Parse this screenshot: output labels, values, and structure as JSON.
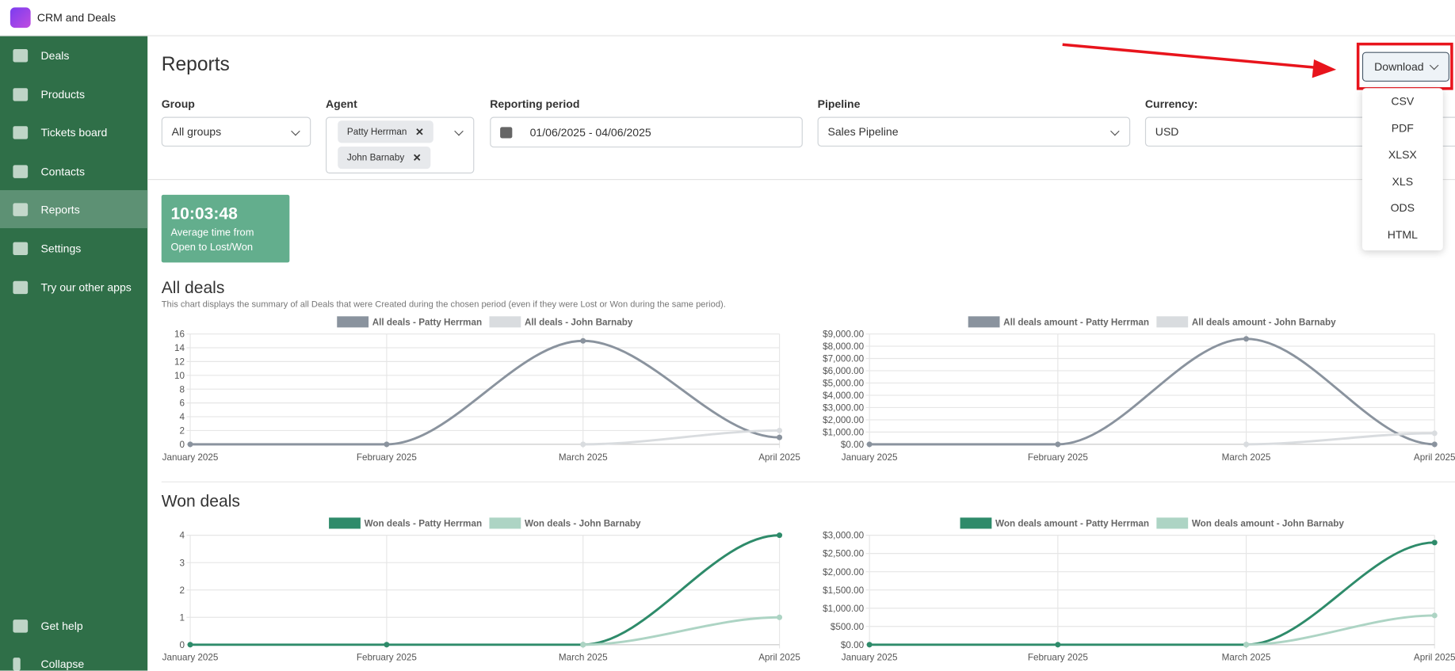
{
  "app": {
    "name": "CRM and Deals"
  },
  "sidebar": {
    "items": [
      "Deals",
      "Products",
      "Tickets board",
      "Contacts",
      "Reports",
      "Settings",
      "Try our other apps"
    ],
    "footer": [
      "Get help",
      "Collapse"
    ]
  },
  "page": {
    "title": "Reports"
  },
  "filters": {
    "group": {
      "label": "Group",
      "value": "All groups"
    },
    "agent": {
      "label": "Agent",
      "chips": [
        "Patty Herrman",
        "John Barnaby"
      ]
    },
    "period": {
      "label": "Reporting period",
      "value": "01/06/2025 - 04/06/2025"
    },
    "pipeline": {
      "label": "Pipeline",
      "value": "Sales Pipeline"
    },
    "currency": {
      "label": "Currency:",
      "value": "USD"
    }
  },
  "download": {
    "label": "Download",
    "options": [
      "CSV",
      "PDF",
      "XLSX",
      "XLS",
      "ODS",
      "HTML"
    ]
  },
  "stat": {
    "value": "10:03:48",
    "caption": "Average time from Open to Lost/Won"
  },
  "sections": [
    {
      "title": "All deals",
      "description": "This chart displays the summary of all Deals that were Created during the chosen period (even if they were Lost or Won during the same period).",
      "charts": [
        {
          "type": "line",
          "categories": [
            "January 2025",
            "February 2025",
            "March 2025",
            "April 2025"
          ],
          "series": [
            {
              "name": "All deals - Patty Herrman",
              "color": "#8a939e",
              "values": [
                0,
                0,
                15,
                1
              ]
            },
            {
              "name": "All deals - John Barnaby",
              "color": "#d9dcdf",
              "values": [
                null,
                null,
                0,
                2
              ]
            }
          ],
          "ylim": [
            0,
            16
          ],
          "yticks": [
            0,
            2,
            4,
            6,
            8,
            10,
            12,
            14,
            16
          ],
          "grid": true
        },
        {
          "type": "line",
          "categories": [
            "January 2025",
            "February 2025",
            "March 2025",
            "April 2025"
          ],
          "series": [
            {
              "name": "All deals amount - Patty Herrman",
              "color": "#8a939e",
              "values": [
                0,
                0,
                8600,
                0
              ]
            },
            {
              "name": "All deals amount - John Barnaby",
              "color": "#d9dcdf",
              "values": [
                null,
                null,
                0,
                900
              ]
            }
          ],
          "ylim": [
            0,
            9000
          ],
          "yticks": [
            {
              "value": 0,
              "label": "$0.00"
            },
            {
              "value": 1000,
              "label": "$1,000.00"
            },
            {
              "value": 2000,
              "label": "$2,000.00"
            },
            {
              "value": 3000,
              "label": "$3,000.00"
            },
            {
              "value": 4000,
              "label": "$4,000.00"
            },
            {
              "value": 5000,
              "label": "$5,000.00"
            },
            {
              "value": 6000,
              "label": "$6,000.00"
            },
            {
              "value": 7000,
              "label": "$7,000.00"
            },
            {
              "value": 8000,
              "label": "$8,000.00"
            },
            {
              "value": 9000,
              "label": "$9,000.00"
            }
          ],
          "grid": true
        }
      ]
    },
    {
      "title": "Won deals",
      "charts": [
        {
          "type": "line",
          "categories": [
            "January 2025",
            "February 2025",
            "March 2025",
            "April 2025"
          ],
          "series": [
            {
              "name": "Won deals - Patty Herrman",
              "color": "#2e8b6a",
              "values": [
                0,
                0,
                0,
                4
              ]
            },
            {
              "name": "Won deals - John Barnaby",
              "color": "#add4c4",
              "values": [
                null,
                null,
                0,
                1
              ]
            }
          ],
          "ylim": [
            0,
            4
          ],
          "yticks": [
            0,
            1,
            2,
            3,
            4
          ],
          "grid": true
        },
        {
          "type": "line",
          "categories": [
            "January 2025",
            "February 2025",
            "March 2025",
            "April 2025"
          ],
          "series": [
            {
              "name": "Won deals amount - Patty Herrman",
              "color": "#2e8b6a",
              "values": [
                0,
                0,
                0,
                2800
              ]
            },
            {
              "name": "Won deals amount - John Barnaby",
              "color": "#add4c4",
              "values": [
                null,
                null,
                0,
                800
              ]
            }
          ],
          "ylim": [
            0,
            3000
          ],
          "yticks": [
            {
              "value": 0,
              "label": "$0.00"
            },
            {
              "value": 500,
              "label": "$500.00"
            },
            {
              "value": 1000,
              "label": "$1,000.00"
            },
            {
              "value": 1500,
              "label": "$1,500.00"
            },
            {
              "value": 2000,
              "label": "$2,000.00"
            },
            {
              "value": 2500,
              "label": "$2,500.00"
            },
            {
              "value": 3000,
              "label": "$3,000.00"
            }
          ],
          "grid": true
        }
      ]
    }
  ]
}
